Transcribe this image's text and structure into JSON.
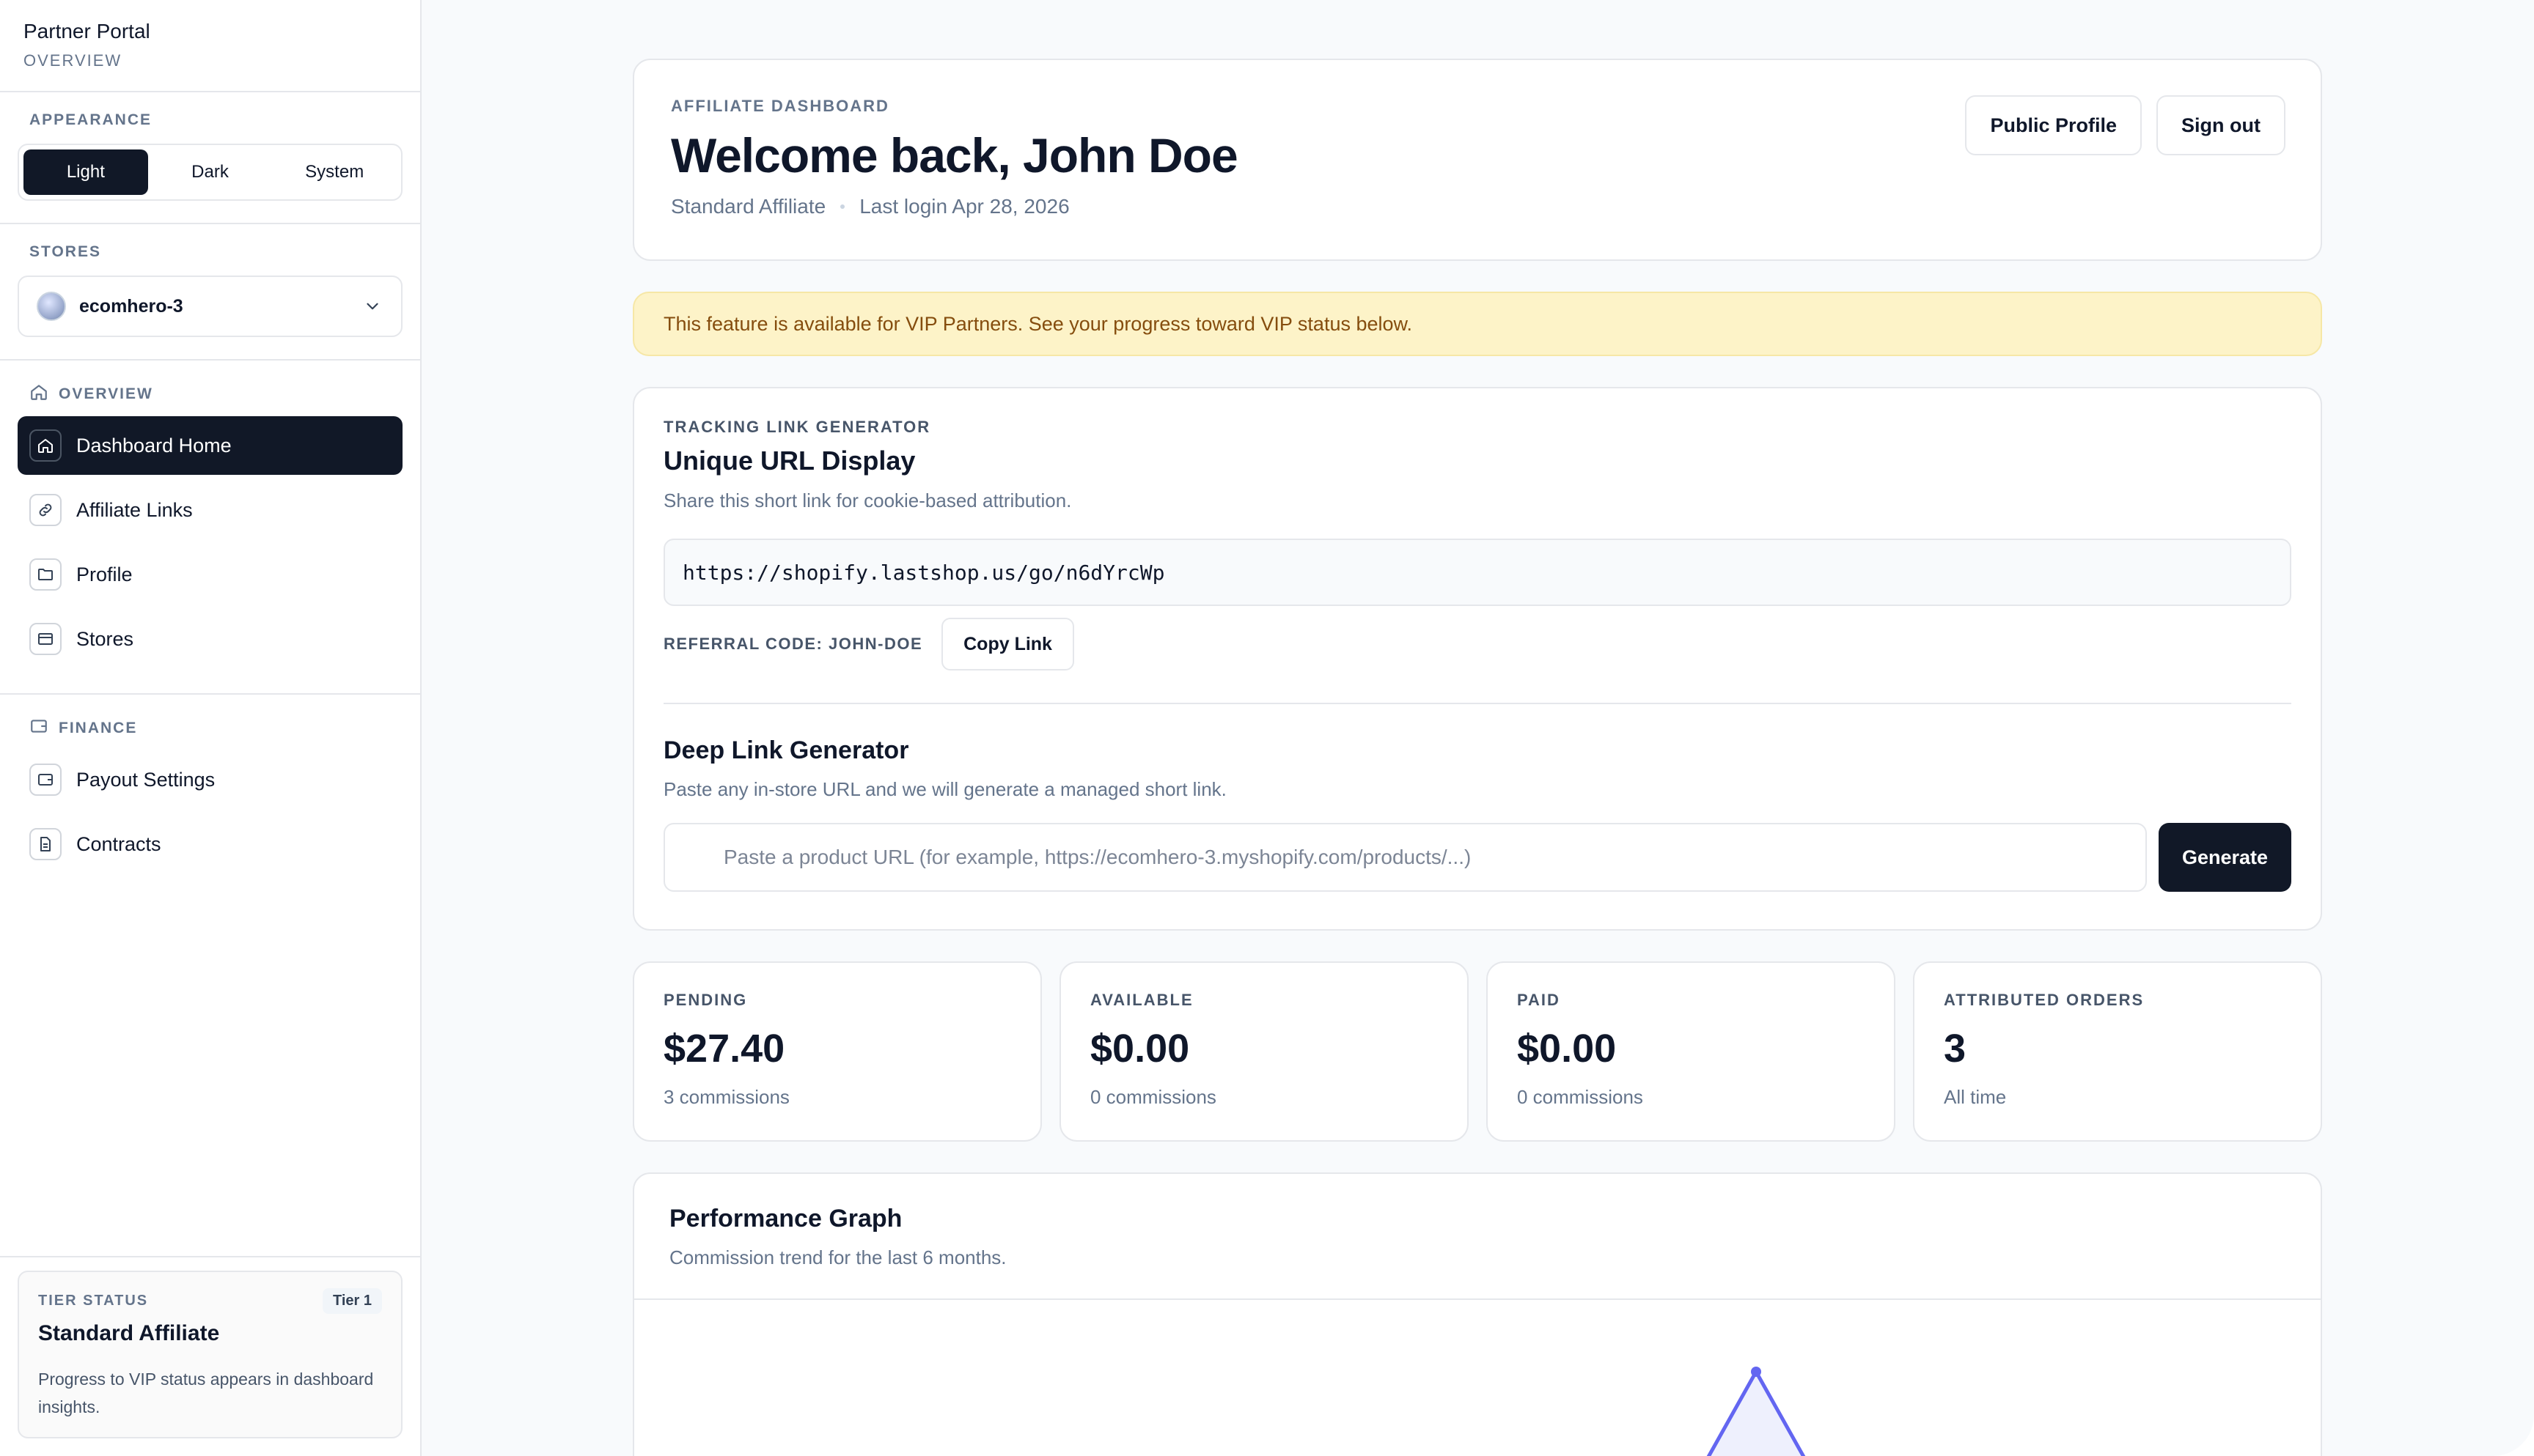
{
  "sidebar": {
    "brand": {
      "title": "Partner Portal",
      "subtitle": "OVERVIEW"
    },
    "appearance": {
      "label": "APPEARANCE",
      "options": [
        "Light",
        "Dark",
        "System"
      ],
      "selected": "Light"
    },
    "stores": {
      "label": "STORES",
      "selected": "ecomhero-3"
    },
    "overview": {
      "label": "OVERVIEW",
      "items": [
        {
          "label": "Dashboard Home",
          "icon": "home-icon",
          "active": true
        },
        {
          "label": "Affiliate Links",
          "icon": "link-icon"
        },
        {
          "label": "Profile",
          "icon": "folder-icon"
        },
        {
          "label": "Stores",
          "icon": "store-icon"
        }
      ]
    },
    "finance": {
      "label": "FINANCE",
      "items": [
        {
          "label": "Payout Settings",
          "icon": "wallet-icon"
        },
        {
          "label": "Contracts",
          "icon": "document-icon"
        }
      ]
    },
    "tier": {
      "label": "TIER STATUS",
      "badge": "Tier 1",
      "name": "Standard Affiliate",
      "description": "Progress to VIP status appears in dashboard insights."
    }
  },
  "header": {
    "eyebrow": "AFFILIATE DASHBOARD",
    "title": "Welcome back, John Doe",
    "tier": "Standard Affiliate",
    "last_login": "Last login Apr 28, 2026",
    "public_profile": "Public Profile",
    "sign_out": "Sign out"
  },
  "notice": "This feature is available for VIP Partners. See your progress toward VIP status below.",
  "tracking": {
    "eyebrow": "TRACKING LINK GENERATOR",
    "title": "Unique URL Display",
    "description": "Share this short link for cookie-based attribution.",
    "url": "https://shopify.lastshop.us/go/n6dYrcWp",
    "referral_code": "REFERRAL CODE: JOHN-DOE",
    "copy_label": "Copy Link",
    "deep_title": "Deep Link Generator",
    "deep_description": "Paste any in-store URL and we will generate a managed short link.",
    "deep_placeholder": "Paste a product URL (for example, https://ecomhero-3.myshopify.com/products/...)",
    "generate_label": "Generate"
  },
  "stats": [
    {
      "label": "PENDING",
      "value": "$27.40",
      "sub": "3 commissions"
    },
    {
      "label": "AVAILABLE",
      "value": "$0.00",
      "sub": "0 commissions"
    },
    {
      "label": "PAID",
      "value": "$0.00",
      "sub": "0 commissions"
    },
    {
      "label": "ATTRIBUTED ORDERS",
      "value": "3",
      "sub": "All time"
    }
  ],
  "performance": {
    "title": "Performance Graph",
    "description": "Commission trend for the last 6 months."
  },
  "colors": {
    "accent_dark": "#111827",
    "notice_bg": "#fdf3c8",
    "notice_text": "#854d0e",
    "graph_line": "#6366f1"
  }
}
